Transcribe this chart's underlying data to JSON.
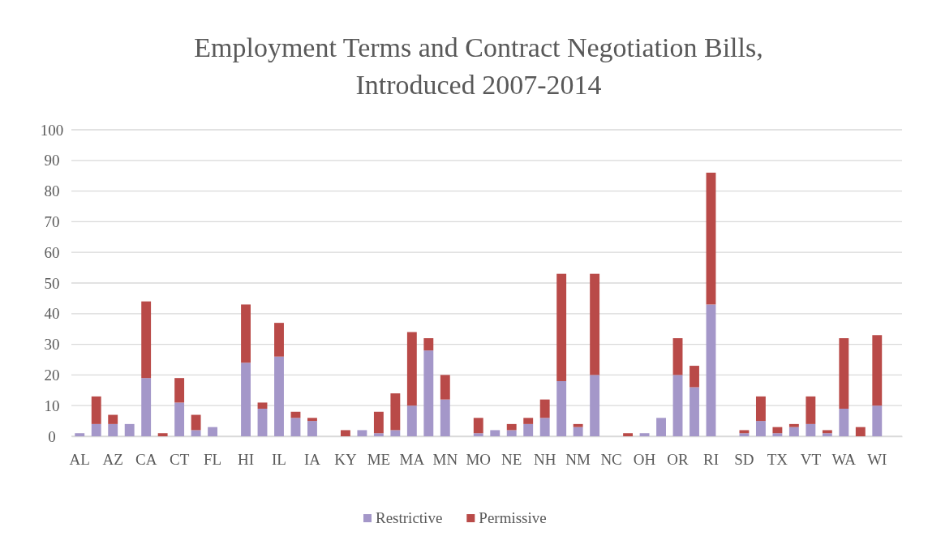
{
  "chart_data": {
    "type": "bar",
    "title": "Employment Terms and Contract Negotiation Bills,\nIntroduced 2007-2014",
    "stacked": true,
    "grid": "y",
    "legend": "bottom",
    "categories": [
      "AL",
      null,
      "AZ",
      null,
      "CA",
      null,
      "CT",
      null,
      "FL",
      null,
      "HI",
      null,
      "IL",
      null,
      "IA",
      null,
      "KY",
      null,
      "ME",
      null,
      "MA",
      null,
      "MN",
      null,
      "MO",
      null,
      "NE",
      null,
      "NH",
      null,
      "NM",
      null,
      "NC",
      null,
      "OH",
      null,
      "OR",
      null,
      "RI",
      null,
      "SD",
      null,
      "TX",
      null,
      "VT",
      null,
      "WA",
      null,
      "WI",
      null
    ],
    "ylim": [
      0,
      100
    ],
    "yticks": [
      0,
      10,
      20,
      30,
      40,
      50,
      60,
      70,
      80,
      90,
      100
    ],
    "series": [
      {
        "name": "Restrictive",
        "color": "#a497c9",
        "values": [
          1,
          4,
          4,
          4,
          19,
          0,
          11,
          2,
          3,
          0,
          24,
          9,
          26,
          6,
          5,
          0,
          0,
          2,
          1,
          2,
          10,
          28,
          12,
          0,
          1,
          2,
          2,
          4,
          6,
          18,
          3,
          20,
          0,
          0,
          1,
          6,
          20,
          16,
          43,
          0,
          1,
          5,
          1,
          3,
          4,
          1,
          9,
          0,
          10,
          0
        ]
      },
      {
        "name": "Permissive",
        "color": "#b94a48",
        "values": [
          0,
          9,
          3,
          0,
          25,
          1,
          8,
          5,
          0,
          0,
          19,
          2,
          11,
          2,
          1,
          0,
          2,
          0,
          7,
          12,
          24,
          4,
          8,
          0,
          5,
          0,
          2,
          2,
          6,
          35,
          1,
          33,
          0,
          1,
          0,
          0,
          12,
          7,
          43,
          0,
          1,
          8,
          2,
          1,
          9,
          1,
          23,
          3,
          23,
          0
        ]
      }
    ]
  }
}
